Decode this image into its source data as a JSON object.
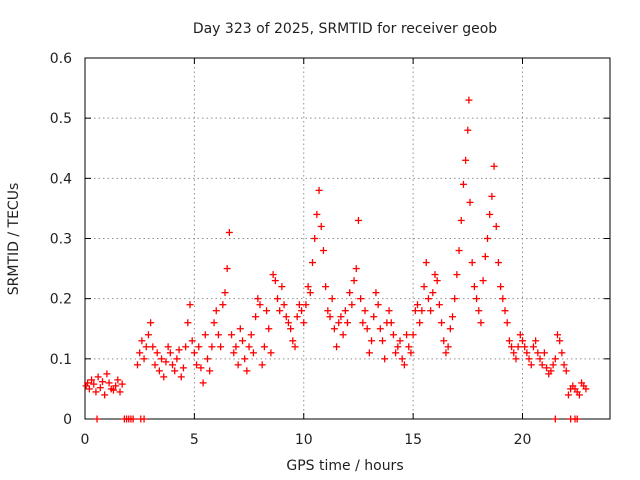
{
  "chart_data": {
    "type": "scatter",
    "title": "Day 323 of 2025, SRMTID for receiver geob",
    "xlabel": "GPS time / hours",
    "ylabel": "SRMTID / TECUs",
    "xlim": [
      0,
      24
    ],
    "ylim": [
      0,
      0.6
    ],
    "x_ticks": [
      0,
      5,
      10,
      15,
      20
    ],
    "x_tick_labels": [
      "0",
      "5",
      "10",
      "15",
      "20"
    ],
    "y_ticks": [
      0,
      0.1,
      0.2,
      0.3,
      0.4,
      0.5,
      0.6
    ],
    "y_tick_labels": [
      "0",
      "0.1",
      "0.2",
      "0.3",
      "0.4",
      "0.5",
      "0.6"
    ],
    "grid": true,
    "marker": "+",
    "color": "#ff0000",
    "series": [
      {
        "name": "geob",
        "points": [
          [
            0.05,
            0.055
          ],
          [
            0.12,
            0.06
          ],
          [
            0.2,
            0.05
          ],
          [
            0.3,
            0.065
          ],
          [
            0.4,
            0.058
          ],
          [
            0.5,
            0.045
          ],
          [
            0.6,
            0.07
          ],
          [
            0.7,
            0.052
          ],
          [
            0.8,
            0.062
          ],
          [
            0.9,
            0.04
          ],
          [
            1.0,
            0.075
          ],
          [
            1.1,
            0.06
          ],
          [
            1.2,
            0.05
          ],
          [
            1.3,
            0.048
          ],
          [
            1.4,
            0.055
          ],
          [
            1.5,
            0.065
          ],
          [
            1.6,
            0.045
          ],
          [
            1.7,
            0.058
          ],
          [
            0.55,
            0.0
          ],
          [
            1.8,
            0.0
          ],
          [
            1.9,
            0.0
          ],
          [
            2.0,
            0.0
          ],
          [
            2.1,
            0.0
          ],
          [
            2.2,
            0.0
          ],
          [
            2.55,
            0.0
          ],
          [
            2.7,
            0.0
          ],
          [
            2.4,
            0.09
          ],
          [
            2.5,
            0.11
          ],
          [
            2.6,
            0.13
          ],
          [
            2.7,
            0.1
          ],
          [
            2.8,
            0.12
          ],
          [
            2.9,
            0.14
          ],
          [
            3.0,
            0.16
          ],
          [
            3.1,
            0.12
          ],
          [
            3.2,
            0.09
          ],
          [
            3.3,
            0.11
          ],
          [
            3.4,
            0.08
          ],
          [
            3.5,
            0.1
          ],
          [
            3.6,
            0.07
          ],
          [
            3.7,
            0.095
          ],
          [
            3.8,
            0.12
          ],
          [
            3.9,
            0.11
          ],
          [
            4.0,
            0.09
          ],
          [
            4.1,
            0.08
          ],
          [
            4.2,
            0.1
          ],
          [
            4.3,
            0.115
          ],
          [
            4.4,
            0.07
          ],
          [
            4.5,
            0.085
          ],
          [
            4.6,
            0.12
          ],
          [
            4.7,
            0.16
          ],
          [
            4.8,
            0.19
          ],
          [
            4.9,
            0.13
          ],
          [
            5.0,
            0.11
          ],
          [
            5.1,
            0.09
          ],
          [
            5.2,
            0.12
          ],
          [
            5.3,
            0.085
          ],
          [
            5.4,
            0.06
          ],
          [
            5.5,
            0.14
          ],
          [
            5.6,
            0.1
          ],
          [
            5.7,
            0.08
          ],
          [
            5.8,
            0.12
          ],
          [
            5.9,
            0.16
          ],
          [
            6.0,
            0.18
          ],
          [
            6.1,
            0.14
          ],
          [
            6.2,
            0.12
          ],
          [
            6.3,
            0.19
          ],
          [
            6.4,
            0.21
          ],
          [
            6.5,
            0.25
          ],
          [
            6.6,
            0.31
          ],
          [
            6.7,
            0.14
          ],
          [
            6.8,
            0.11
          ],
          [
            6.9,
            0.12
          ],
          [
            7.0,
            0.09
          ],
          [
            7.1,
            0.15
          ],
          [
            7.2,
            0.13
          ],
          [
            7.3,
            0.1
          ],
          [
            7.4,
            0.08
          ],
          [
            7.5,
            0.12
          ],
          [
            7.6,
            0.14
          ],
          [
            7.7,
            0.11
          ],
          [
            7.8,
            0.17
          ],
          [
            7.9,
            0.2
          ],
          [
            8.0,
            0.19
          ],
          [
            8.1,
            0.09
          ],
          [
            8.2,
            0.12
          ],
          [
            8.3,
            0.18
          ],
          [
            8.4,
            0.15
          ],
          [
            8.5,
            0.11
          ],
          [
            8.6,
            0.24
          ],
          [
            8.7,
            0.23
          ],
          [
            8.8,
            0.2
          ],
          [
            8.9,
            0.18
          ],
          [
            9.0,
            0.22
          ],
          [
            9.1,
            0.19
          ],
          [
            9.2,
            0.17
          ],
          [
            9.3,
            0.16
          ],
          [
            9.4,
            0.15
          ],
          [
            9.5,
            0.13
          ],
          [
            9.6,
            0.12
          ],
          [
            9.7,
            0.17
          ],
          [
            9.8,
            0.19
          ],
          [
            9.9,
            0.18
          ],
          [
            10.0,
            0.16
          ],
          [
            10.1,
            0.19
          ],
          [
            10.2,
            0.22
          ],
          [
            10.3,
            0.21
          ],
          [
            10.4,
            0.26
          ],
          [
            10.5,
            0.3
          ],
          [
            10.6,
            0.34
          ],
          [
            10.7,
            0.38
          ],
          [
            10.8,
            0.32
          ],
          [
            10.9,
            0.28
          ],
          [
            11.0,
            0.22
          ],
          [
            11.1,
            0.18
          ],
          [
            11.2,
            0.17
          ],
          [
            11.3,
            0.2
          ],
          [
            11.4,
            0.15
          ],
          [
            11.5,
            0.12
          ],
          [
            11.6,
            0.16
          ],
          [
            11.7,
            0.17
          ],
          [
            11.8,
            0.14
          ],
          [
            11.9,
            0.18
          ],
          [
            12.0,
            0.16
          ],
          [
            12.1,
            0.21
          ],
          [
            12.2,
            0.19
          ],
          [
            12.3,
            0.23
          ],
          [
            12.4,
            0.25
          ],
          [
            12.5,
            0.33
          ],
          [
            12.6,
            0.2
          ],
          [
            12.7,
            0.16
          ],
          [
            12.8,
            0.18
          ],
          [
            12.9,
            0.15
          ],
          [
            13.0,
            0.11
          ],
          [
            13.1,
            0.13
          ],
          [
            13.2,
            0.17
          ],
          [
            13.3,
            0.21
          ],
          [
            13.4,
            0.19
          ],
          [
            13.5,
            0.15
          ],
          [
            13.6,
            0.13
          ],
          [
            13.7,
            0.1
          ],
          [
            13.8,
            0.16
          ],
          [
            13.9,
            0.18
          ],
          [
            14.0,
            0.16
          ],
          [
            14.1,
            0.14
          ],
          [
            14.2,
            0.11
          ],
          [
            14.3,
            0.12
          ],
          [
            14.4,
            0.13
          ],
          [
            14.5,
            0.1
          ],
          [
            14.6,
            0.09
          ],
          [
            14.7,
            0.14
          ],
          [
            14.8,
            0.12
          ],
          [
            14.9,
            0.11
          ],
          [
            15.0,
            0.14
          ],
          [
            15.1,
            0.18
          ],
          [
            15.2,
            0.19
          ],
          [
            15.3,
            0.16
          ],
          [
            15.4,
            0.18
          ],
          [
            15.5,
            0.22
          ],
          [
            15.6,
            0.26
          ],
          [
            15.7,
            0.2
          ],
          [
            15.8,
            0.18
          ],
          [
            15.9,
            0.21
          ],
          [
            16.0,
            0.24
          ],
          [
            16.1,
            0.23
          ],
          [
            16.2,
            0.19
          ],
          [
            16.3,
            0.16
          ],
          [
            16.4,
            0.13
          ],
          [
            16.5,
            0.11
          ],
          [
            16.6,
            0.12
          ],
          [
            16.7,
            0.15
          ],
          [
            16.8,
            0.17
          ],
          [
            16.9,
            0.2
          ],
          [
            17.0,
            0.24
          ],
          [
            17.1,
            0.28
          ],
          [
            17.2,
            0.33
          ],
          [
            17.3,
            0.39
          ],
          [
            17.4,
            0.43
          ],
          [
            17.5,
            0.48
          ],
          [
            17.55,
            0.53
          ],
          [
            17.6,
            0.36
          ],
          [
            17.7,
            0.26
          ],
          [
            17.8,
            0.22
          ],
          [
            17.9,
            0.2
          ],
          [
            18.0,
            0.18
          ],
          [
            18.1,
            0.16
          ],
          [
            18.2,
            0.23
          ],
          [
            18.3,
            0.27
          ],
          [
            18.4,
            0.3
          ],
          [
            18.5,
            0.34
          ],
          [
            18.6,
            0.37
          ],
          [
            18.7,
            0.42
          ],
          [
            18.8,
            0.32
          ],
          [
            18.9,
            0.26
          ],
          [
            19.0,
            0.22
          ],
          [
            19.1,
            0.2
          ],
          [
            19.2,
            0.18
          ],
          [
            19.3,
            0.16
          ],
          [
            19.4,
            0.13
          ],
          [
            19.5,
            0.12
          ],
          [
            19.6,
            0.11
          ],
          [
            19.7,
            0.1
          ],
          [
            19.8,
            0.12
          ],
          [
            19.9,
            0.14
          ],
          [
            20.0,
            0.13
          ],
          [
            20.1,
            0.12
          ],
          [
            20.2,
            0.11
          ],
          [
            20.3,
            0.1
          ],
          [
            20.4,
            0.09
          ],
          [
            20.5,
            0.12
          ],
          [
            20.6,
            0.13
          ],
          [
            20.7,
            0.11
          ],
          [
            20.8,
            0.1
          ],
          [
            20.9,
            0.09
          ],
          [
            21.0,
            0.11
          ],
          [
            21.1,
            0.085
          ],
          [
            21.2,
            0.075
          ],
          [
            21.3,
            0.08
          ],
          [
            21.4,
            0.09
          ],
          [
            21.5,
            0.1
          ],
          [
            21.6,
            0.14
          ],
          [
            21.7,
            0.13
          ],
          [
            21.8,
            0.11
          ],
          [
            21.9,
            0.09
          ],
          [
            22.0,
            0.08
          ],
          [
            21.5,
            0.0
          ],
          [
            22.2,
            0.0
          ],
          [
            22.4,
            0.0
          ],
          [
            22.5,
            0.0
          ],
          [
            22.1,
            0.04
          ],
          [
            22.2,
            0.05
          ],
          [
            22.3,
            0.055
          ],
          [
            22.4,
            0.05
          ],
          [
            22.5,
            0.045
          ],
          [
            22.6,
            0.04
          ],
          [
            22.7,
            0.06
          ],
          [
            22.8,
            0.055
          ],
          [
            22.9,
            0.05
          ]
        ]
      }
    ]
  }
}
